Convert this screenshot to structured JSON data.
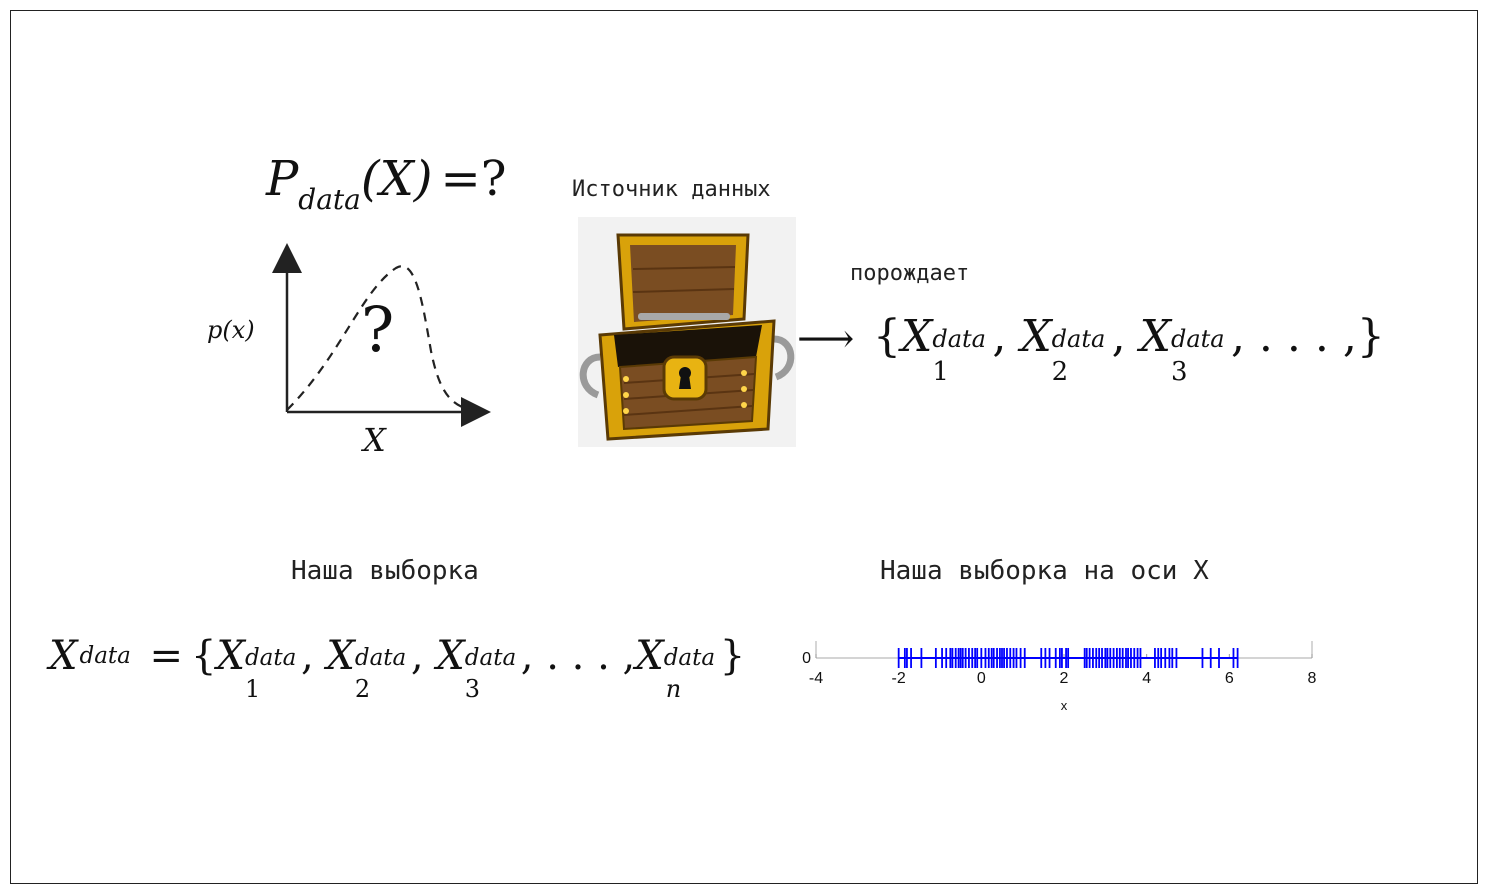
{
  "formula_top": {
    "P": "P",
    "sub": "data",
    "arg": "(X)",
    "rhs": "=?"
  },
  "plot_sketch": {
    "y_label": "p(x)",
    "x_label": "X",
    "mark": "?"
  },
  "source": {
    "caption": "Источник данных",
    "icon": "treasure-chest-icon"
  },
  "generates": {
    "caption": "порождает",
    "arrow": "⟶",
    "set": {
      "open": "{",
      "X": "X",
      "sup": "data",
      "idx1": "1",
      "idx2": "2",
      "idx3": "3",
      "tail": ", . . . ,",
      "close": "}"
    }
  },
  "sample": {
    "caption": "Наша выборка",
    "lhs_X": "X",
    "lhs_sup": "data",
    "eq": "=",
    "open": "{",
    "X": "X",
    "sup": "data",
    "idx1": "1",
    "idx2": "2",
    "idx3": "3",
    "dots": ", . . . ,",
    "idxn": "n",
    "close": "}"
  },
  "axis_plot": {
    "caption": "Наша выборка на оси X",
    "chart_data": {
      "type": "scatter",
      "title": "",
      "xlabel": "x",
      "ylabel": "",
      "xlim": [
        -4,
        8
      ],
      "x_ticks": [
        "-4",
        "-2",
        "0",
        "2",
        "4",
        "6",
        "8"
      ],
      "y_ticks": [
        "0"
      ],
      "series_color": "#0000ff",
      "x": [
        -2.0,
        -1.85,
        -1.8,
        -1.7,
        -1.45,
        -1.1,
        -0.95,
        -0.85,
        -0.75,
        -0.7,
        -0.62,
        -0.55,
        -0.5,
        -0.45,
        -0.38,
        -0.3,
        -0.22,
        -0.15,
        -0.1,
        0.0,
        0.1,
        0.18,
        0.25,
        0.3,
        0.38,
        0.45,
        0.5,
        0.55,
        0.62,
        0.7,
        0.78,
        0.85,
        0.95,
        1.05,
        1.45,
        1.55,
        1.65,
        1.8,
        1.9,
        1.95,
        2.05,
        2.1,
        2.5,
        2.55,
        2.62,
        2.7,
        2.78,
        2.85,
        2.92,
        3.0,
        3.05,
        3.12,
        3.2,
        3.28,
        3.35,
        3.42,
        3.5,
        3.55,
        3.62,
        3.7,
        3.78,
        3.85,
        4.2,
        4.28,
        4.35,
        4.45,
        4.55,
        4.62,
        4.72,
        5.35,
        5.55,
        5.75,
        6.1,
        6.2
      ],
      "y": 0
    }
  }
}
